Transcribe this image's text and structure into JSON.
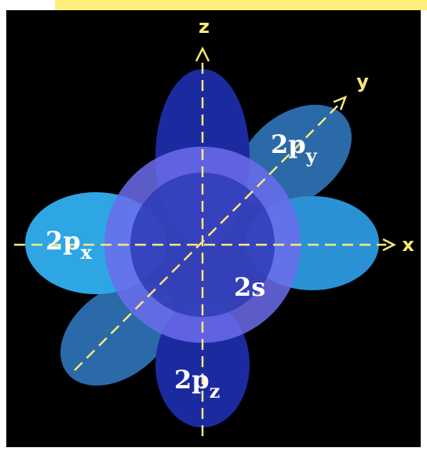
{
  "axes": [
    {
      "label": "z"
    },
    {
      "label": "y"
    },
    {
      "label": "x"
    }
  ],
  "orbitals": {
    "py": {
      "label": "2p",
      "sub": "y"
    },
    "px": {
      "label": "2p",
      "sub": "x"
    },
    "s": {
      "label": "2s"
    },
    "pz": {
      "label": "2p",
      "sub": "z"
    }
  }
}
